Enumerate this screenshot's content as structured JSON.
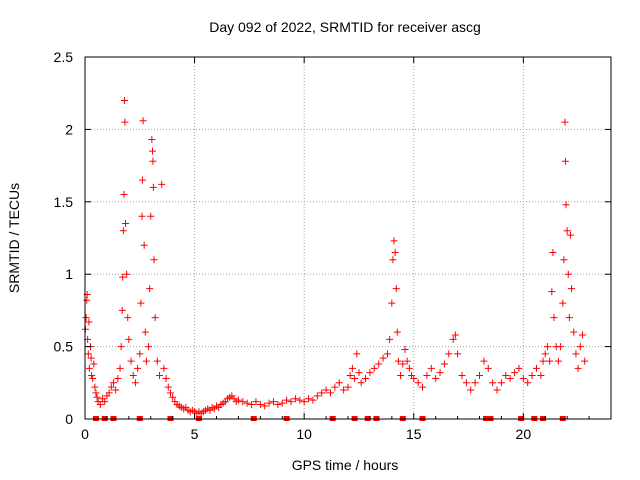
{
  "chart_data": {
    "type": "scatter",
    "title": "Day 092 of 2022, SRMTID for receiver ascg",
    "xlabel": "GPS time / hours",
    "ylabel": "SRMTID / TECUs",
    "xlim": [
      0,
      24
    ],
    "ylim": [
      0,
      2.5
    ],
    "xticks": [
      0,
      5,
      10,
      15,
      20
    ],
    "yticks": [
      0,
      0.5,
      1,
      1.5,
      2,
      2.5
    ],
    "ytick_labels": [
      "0",
      "0.5",
      "1",
      "1.5",
      "2",
      "2.5"
    ],
    "grid": true,
    "marker": "+",
    "color": "#ff0000",
    "series": [
      {
        "name": "SRMTID",
        "points": [
          [
            0.02,
            0.62
          ],
          [
            0.05,
            0.7
          ],
          [
            0.08,
            0.82
          ],
          [
            0.1,
            0.86
          ],
          [
            0.12,
            0.55
          ],
          [
            0.15,
            0.45
          ],
          [
            0.18,
            0.67
          ],
          [
            0.2,
            0.35
          ],
          [
            0.25,
            0.5
          ],
          [
            0.28,
            0.42
          ],
          [
            0.3,
            0.3
          ],
          [
            0.35,
            0.28
          ],
          [
            0.4,
            0.38
          ],
          [
            0.45,
            0.22
          ],
          [
            0.5,
            0.18
          ],
          [
            0.55,
            0.15
          ],
          [
            0.6,
            0.12
          ],
          [
            0.7,
            0.1
          ],
          [
            0.8,
            0.14
          ],
          [
            0.9,
            0.12
          ],
          [
            1.0,
            0.16
          ],
          [
            1.1,
            0.18
          ],
          [
            1.2,
            0.22
          ],
          [
            1.3,
            0.25
          ],
          [
            1.4,
            0.2
          ],
          [
            1.5,
            0.28
          ],
          [
            1.6,
            0.35
          ],
          [
            1.65,
            0.5
          ],
          [
            1.7,
            0.75
          ],
          [
            1.72,
            0.98
          ],
          [
            1.75,
            1.3
          ],
          [
            1.78,
            1.55
          ],
          [
            1.8,
            2.2
          ],
          [
            1.82,
            2.05
          ],
          [
            1.85,
            1.35
          ],
          [
            1.9,
            1.0
          ],
          [
            1.95,
            0.7
          ],
          [
            2.0,
            0.55
          ],
          [
            2.1,
            0.4
          ],
          [
            2.2,
            0.3
          ],
          [
            2.3,
            0.25
          ],
          [
            2.4,
            0.35
          ],
          [
            2.5,
            0.45
          ],
          [
            2.55,
            0.8
          ],
          [
            2.6,
            1.4
          ],
          [
            2.62,
            1.65
          ],
          [
            2.65,
            2.06
          ],
          [
            2.7,
            1.2
          ],
          [
            2.75,
            0.6
          ],
          [
            2.8,
            0.4
          ],
          [
            2.9,
            0.5
          ],
          [
            2.95,
            0.9
          ],
          [
            3.0,
            1.4
          ],
          [
            3.05,
            1.93
          ],
          [
            3.08,
            1.85
          ],
          [
            3.1,
            1.78
          ],
          [
            3.12,
            1.6
          ],
          [
            3.15,
            1.1
          ],
          [
            3.2,
            0.7
          ],
          [
            3.3,
            0.4
          ],
          [
            3.4,
            0.3
          ],
          [
            3.5,
            1.62
          ],
          [
            3.6,
            0.35
          ],
          [
            3.7,
            0.28
          ],
          [
            3.8,
            0.22
          ],
          [
            3.9,
            0.18
          ],
          [
            4.0,
            0.15
          ],
          [
            4.1,
            0.12
          ],
          [
            4.2,
            0.1
          ],
          [
            4.3,
            0.09
          ],
          [
            4.4,
            0.08
          ],
          [
            4.5,
            0.07
          ],
          [
            4.6,
            0.08
          ],
          [
            4.7,
            0.06
          ],
          [
            4.8,
            0.05
          ],
          [
            4.9,
            0.06
          ],
          [
            5.0,
            0.05
          ],
          [
            5.1,
            0.04
          ],
          [
            5.2,
            0.05
          ],
          [
            5.3,
            0.04
          ],
          [
            5.4,
            0.05
          ],
          [
            5.5,
            0.06
          ],
          [
            5.6,
            0.07
          ],
          [
            5.7,
            0.06
          ],
          [
            5.8,
            0.08
          ],
          [
            5.9,
            0.07
          ],
          [
            6.0,
            0.09
          ],
          [
            6.1,
            0.08
          ],
          [
            6.2,
            0.1
          ],
          [
            6.3,
            0.11
          ],
          [
            6.4,
            0.12
          ],
          [
            6.5,
            0.14
          ],
          [
            6.6,
            0.15
          ],
          [
            6.7,
            0.16
          ],
          [
            6.8,
            0.14
          ],
          [
            6.9,
            0.12
          ],
          [
            7.0,
            0.13
          ],
          [
            7.2,
            0.12
          ],
          [
            7.4,
            0.11
          ],
          [
            7.6,
            0.1
          ],
          [
            7.8,
            0.12
          ],
          [
            8.0,
            0.1
          ],
          [
            8.2,
            0.09
          ],
          [
            8.4,
            0.11
          ],
          [
            8.6,
            0.12
          ],
          [
            8.8,
            0.1
          ],
          [
            9.0,
            0.11
          ],
          [
            9.2,
            0.13
          ],
          [
            9.4,
            0.12
          ],
          [
            9.6,
            0.14
          ],
          [
            9.8,
            0.13
          ],
          [
            10.0,
            0.12
          ],
          [
            10.2,
            0.14
          ],
          [
            10.4,
            0.13
          ],
          [
            10.6,
            0.16
          ],
          [
            10.8,
            0.18
          ],
          [
            11.0,
            0.2
          ],
          [
            11.2,
            0.18
          ],
          [
            11.4,
            0.22
          ],
          [
            11.6,
            0.25
          ],
          [
            11.8,
            0.2
          ],
          [
            12.0,
            0.22
          ],
          [
            12.1,
            0.3
          ],
          [
            12.2,
            0.35
          ],
          [
            12.3,
            0.28
          ],
          [
            12.4,
            0.45
          ],
          [
            12.5,
            0.32
          ],
          [
            12.6,
            0.25
          ],
          [
            12.8,
            0.28
          ],
          [
            13.0,
            0.32
          ],
          [
            13.2,
            0.35
          ],
          [
            13.4,
            0.38
          ],
          [
            13.6,
            0.42
          ],
          [
            13.8,
            0.45
          ],
          [
            13.9,
            0.55
          ],
          [
            14.0,
            0.8
          ],
          [
            14.05,
            1.1
          ],
          [
            14.1,
            1.23
          ],
          [
            14.15,
            1.15
          ],
          [
            14.2,
            0.9
          ],
          [
            14.25,
            0.6
          ],
          [
            14.3,
            0.4
          ],
          [
            14.4,
            0.3
          ],
          [
            14.5,
            0.38
          ],
          [
            14.6,
            0.48
          ],
          [
            14.7,
            0.4
          ],
          [
            14.8,
            0.35
          ],
          [
            14.9,
            0.3
          ],
          [
            15.0,
            0.28
          ],
          [
            15.2,
            0.25
          ],
          [
            15.4,
            0.22
          ],
          [
            15.6,
            0.3
          ],
          [
            15.8,
            0.35
          ],
          [
            16.0,
            0.28
          ],
          [
            16.2,
            0.32
          ],
          [
            16.4,
            0.38
          ],
          [
            16.6,
            0.45
          ],
          [
            16.8,
            0.55
          ],
          [
            16.9,
            0.58
          ],
          [
            17.0,
            0.45
          ],
          [
            17.2,
            0.3
          ],
          [
            17.4,
            0.25
          ],
          [
            17.6,
            0.2
          ],
          [
            17.8,
            0.25
          ],
          [
            18.0,
            0.3
          ],
          [
            18.2,
            0.4
          ],
          [
            18.4,
            0.35
          ],
          [
            18.6,
            0.25
          ],
          [
            18.8,
            0.2
          ],
          [
            19.0,
            0.25
          ],
          [
            19.2,
            0.3
          ],
          [
            19.4,
            0.28
          ],
          [
            19.6,
            0.32
          ],
          [
            19.8,
            0.35
          ],
          [
            20.0,
            0.28
          ],
          [
            20.2,
            0.25
          ],
          [
            20.4,
            0.3
          ],
          [
            20.6,
            0.35
          ],
          [
            20.8,
            0.3
          ],
          [
            20.9,
            0.4
          ],
          [
            21.0,
            0.45
          ],
          [
            21.1,
            0.5
          ],
          [
            21.2,
            0.4
          ],
          [
            21.3,
            0.88
          ],
          [
            21.35,
            1.15
          ],
          [
            21.4,
            0.7
          ],
          [
            21.5,
            0.5
          ],
          [
            21.6,
            0.4
          ],
          [
            21.7,
            0.5
          ],
          [
            21.8,
            0.8
          ],
          [
            21.85,
            1.1
          ],
          [
            21.9,
            2.05
          ],
          [
            21.92,
            1.78
          ],
          [
            21.95,
            1.48
          ],
          [
            22.0,
            1.3
          ],
          [
            22.05,
            1.0
          ],
          [
            22.1,
            0.7
          ],
          [
            22.15,
            1.27
          ],
          [
            22.2,
            0.9
          ],
          [
            22.3,
            0.6
          ],
          [
            22.4,
            0.45
          ],
          [
            22.5,
            0.35
          ],
          [
            22.6,
            0.5
          ],
          [
            22.7,
            0.58
          ],
          [
            22.8,
            0.4
          ]
        ]
      }
    ],
    "zero_markers_x": [
      0.5,
      0.9,
      1.3,
      2.5,
      3.9,
      5.2,
      7.7,
      9.2,
      11.3,
      12.3,
      12.9,
      13.3,
      14.5,
      15.4,
      18.3,
      18.5,
      19.9,
      20.5,
      20.9,
      21.8
    ]
  }
}
